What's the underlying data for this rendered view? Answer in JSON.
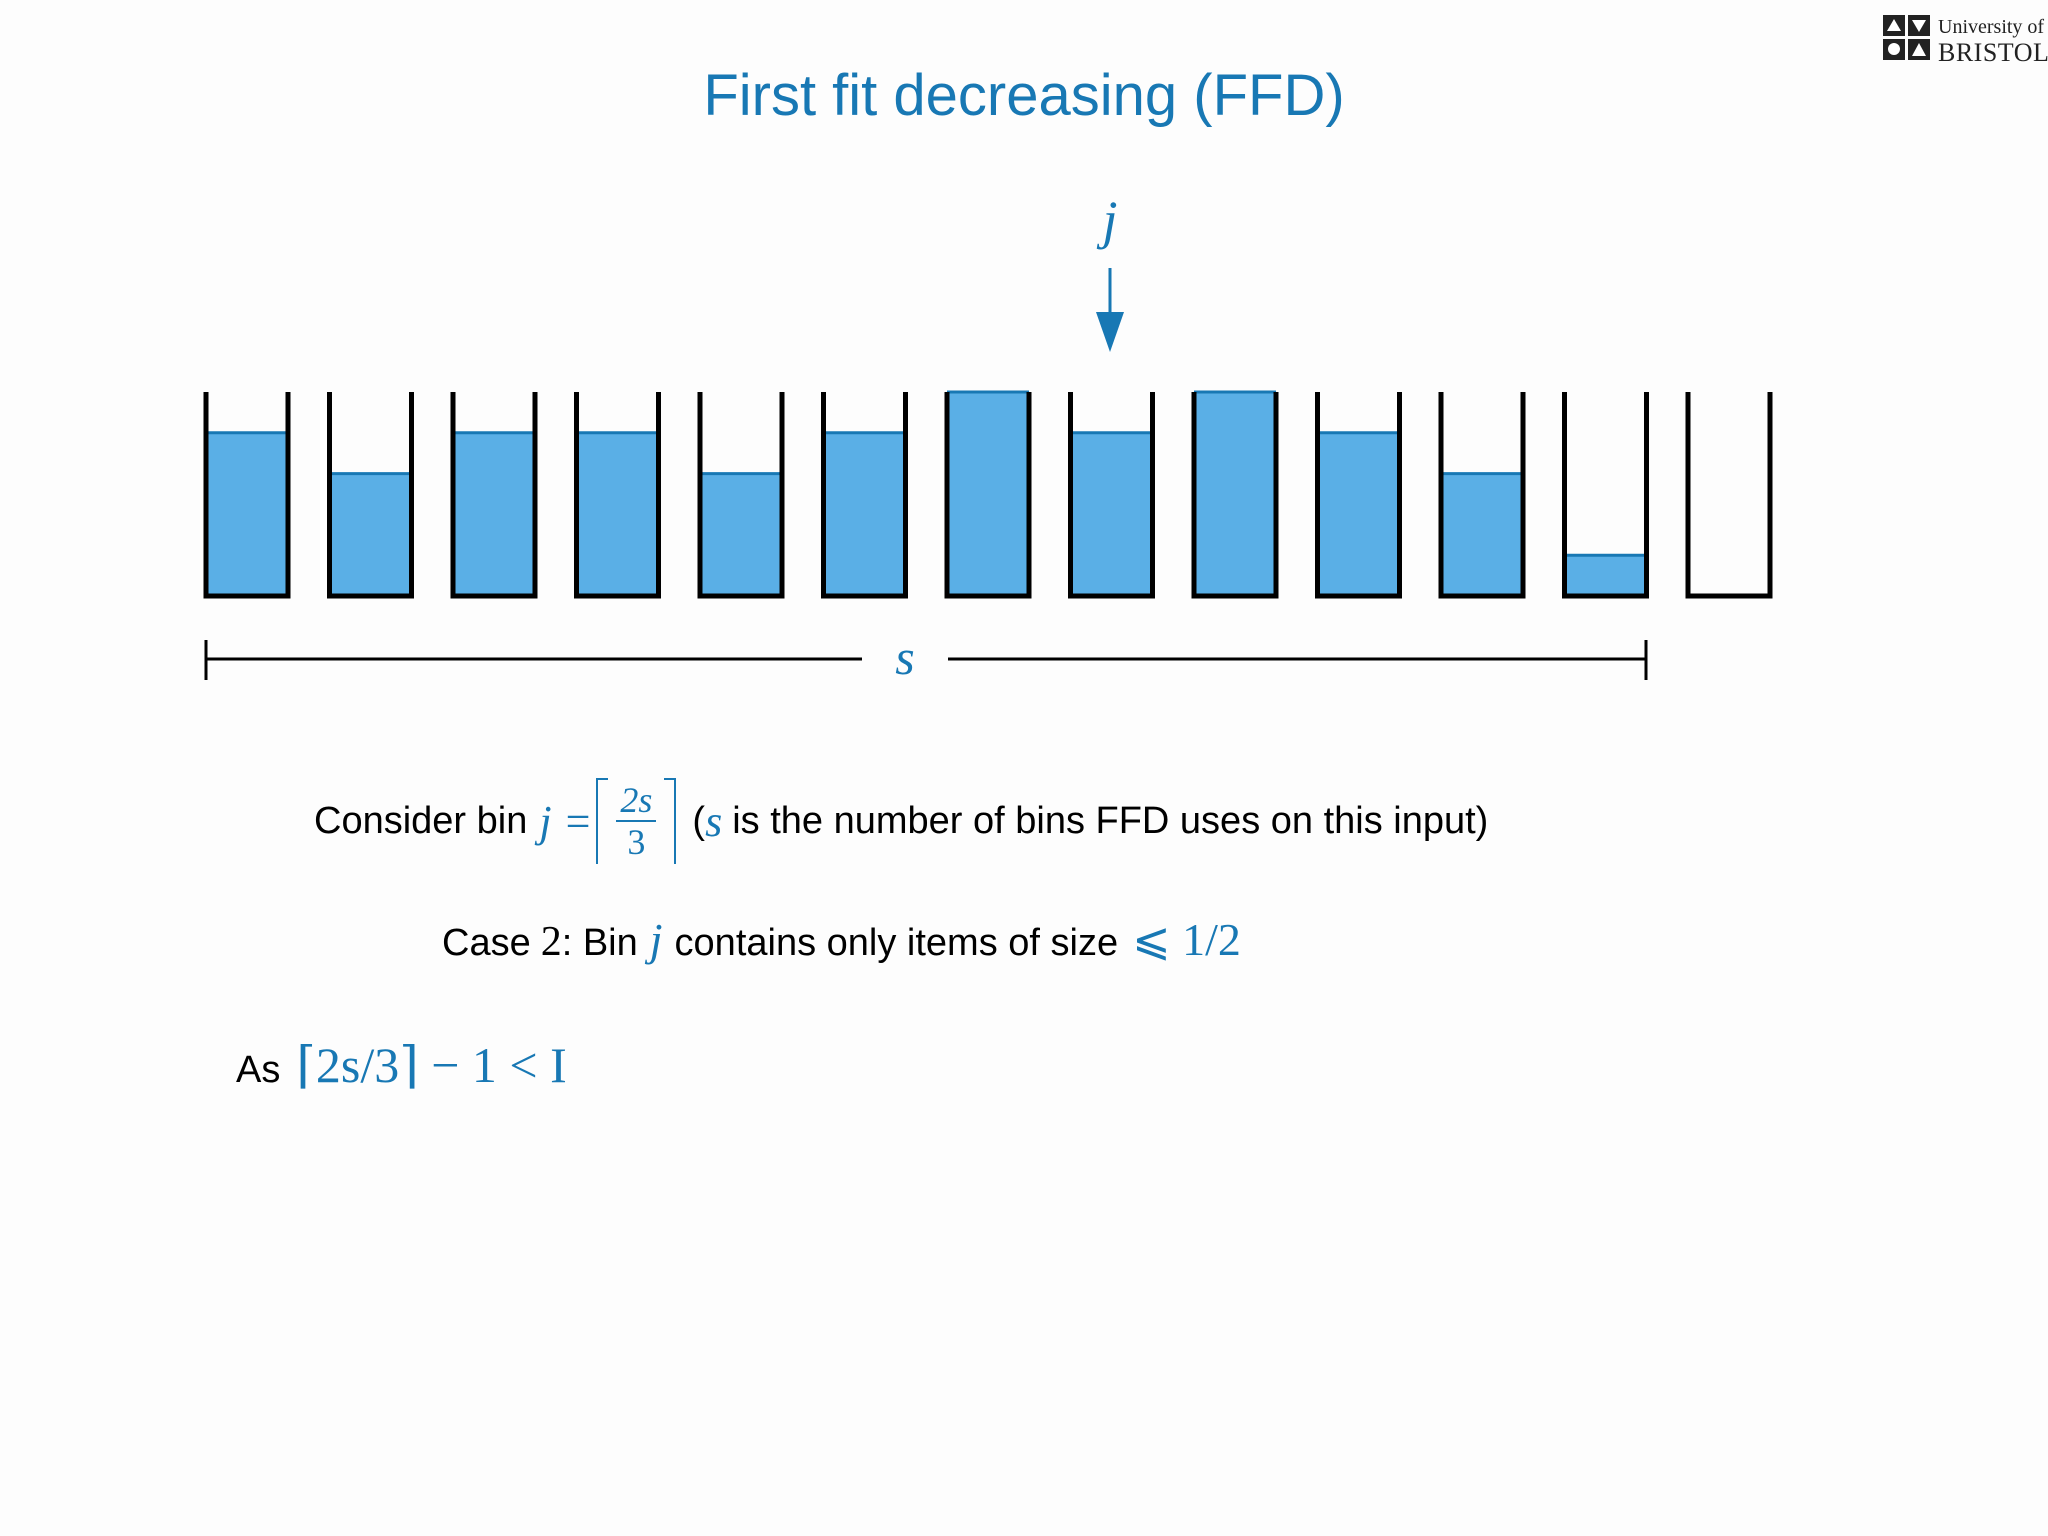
{
  "slide": {
    "title": "First fit decreasing (FFD)",
    "logo": {
      "line1": "University of",
      "line2": "BRISTOL"
    }
  },
  "diagram": {
    "pointer_label": "j",
    "span_label": "s",
    "bin_count": 13,
    "bin_fill_levels": [
      0.8,
      0.6,
      0.8,
      0.8,
      0.6,
      0.8,
      1.0,
      0.8,
      1.0,
      0.8,
      0.6,
      0.2,
      0.0
    ],
    "pointer_bin_index": 8,
    "span_start_bin": 1,
    "span_end_bin": 12,
    "colors": {
      "fill": "#5aafe6",
      "fill_top": "#1878b4",
      "outline": "#000000",
      "accent": "#1878b4"
    }
  },
  "text": {
    "line1": {
      "lead": "Consider bin",
      "var": "j",
      "eq": "=",
      "frac_num": "2s",
      "frac_den": "3",
      "paren_open": "(",
      "paren_var": "s",
      "tail": "is the number of bins FFD uses on this input)"
    },
    "line2": {
      "lead": "Case",
      "num": "2",
      "mid": ": Bin",
      "var": "j",
      "tail": "contains only items of size",
      "rel": "⩽ 1/2"
    },
    "line3": {
      "lead": "As",
      "expr": "⌈2s/3⌉ − 1 < I"
    }
  }
}
